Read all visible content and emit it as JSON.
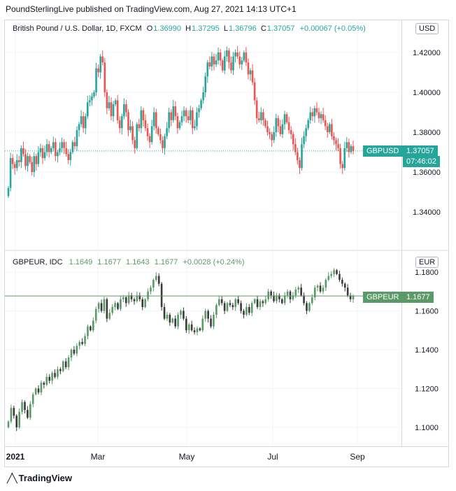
{
  "header": {
    "publisher": "PoundSterlingLive published on TradingView.com, Aug 27, 2021 14:13 UTC+1"
  },
  "footer": {
    "brand": "TradingView"
  },
  "colors": {
    "up": "#26a69a",
    "down": "#ef5350",
    "up2": "#5b9a68",
    "down2": "#3a3a3a",
    "usd_tag": "#26a69a",
    "eur_tag": "#5b9a68",
    "grid": "#f0f3fa",
    "text": "#131722"
  },
  "chart_data": [
    {
      "type": "candlestick",
      "title": "British Pound / U.S. Dollar, 1D, FXCM",
      "ohlc": {
        "o_label": "O",
        "o": "1.36990",
        "h_label": "H",
        "h": "1.37295",
        "l_label": "L",
        "l": "1.36796",
        "c_label": "C",
        "c": "1.37057",
        "change": "+0.00067 (+0.05%)"
      },
      "currency": "USD",
      "y_ticks": [
        "1.42000",
        "1.40000",
        "1.38000",
        "1.36000",
        "1.34000"
      ],
      "ylim": [
        1.328,
        1.435
      ],
      "last": {
        "symbol": "GBPUSD",
        "value": "1.37057",
        "countdown": "07:46:02",
        "price": 1.37057
      },
      "closes": [
        1.352,
        1.367,
        1.364,
        1.362,
        1.366,
        1.365,
        1.372,
        1.369,
        1.363,
        1.368,
        1.365,
        1.36,
        1.368,
        1.364,
        1.37,
        1.372,
        1.367,
        1.37,
        1.374,
        1.37,
        1.372,
        1.375,
        1.368,
        1.37,
        1.372,
        1.375,
        1.372,
        1.369,
        1.366,
        1.37,
        1.375,
        1.373,
        1.381,
        1.384,
        1.388,
        1.382,
        1.388,
        1.395,
        1.396,
        1.398,
        1.4,
        1.412,
        1.41,
        1.418,
        1.415,
        1.4,
        1.392,
        1.395,
        1.388,
        1.394,
        1.396,
        1.386,
        1.382,
        1.388,
        1.394,
        1.39,
        1.381,
        1.383,
        1.376,
        1.372,
        1.384,
        1.382,
        1.391,
        1.386,
        1.382,
        1.378,
        1.375,
        1.383,
        1.39,
        1.382,
        1.379,
        1.376,
        1.372,
        1.378,
        1.382,
        1.39,
        1.386,
        1.393,
        1.388,
        1.382,
        1.385,
        1.388,
        1.391,
        1.388,
        1.386,
        1.391,
        1.382,
        1.383,
        1.39,
        1.392,
        1.396,
        1.4,
        1.408,
        1.415,
        1.413,
        1.418,
        1.414,
        1.416,
        1.42,
        1.416,
        1.411,
        1.418,
        1.421,
        1.415,
        1.411,
        1.418,
        1.42,
        1.418,
        1.414,
        1.416,
        1.42,
        1.415,
        1.409,
        1.411,
        1.405,
        1.396,
        1.387,
        1.386,
        1.39,
        1.386,
        1.383,
        1.38,
        1.379,
        1.376,
        1.38,
        1.387,
        1.383,
        1.379,
        1.384,
        1.389,
        1.385,
        1.381,
        1.379,
        1.374,
        1.37,
        1.366,
        1.362,
        1.374,
        1.378,
        1.382,
        1.386,
        1.39,
        1.388,
        1.392,
        1.39,
        1.387,
        1.389,
        1.386,
        1.383,
        1.38,
        1.384,
        1.378,
        1.376,
        1.374,
        1.372,
        1.364,
        1.362,
        1.372,
        1.375,
        1.37,
        1.373,
        1.3706
      ]
    },
    {
      "type": "candlestick",
      "title": "GBPEUR, IDC",
      "ohlc": {
        "o": "1.1649",
        "h": "1.1677",
        "l": "1.1643",
        "c": "1.1677",
        "change": "+0.0028 (+0.24%)"
      },
      "currency": "EUR",
      "y_ticks": [
        "1.1800",
        "1.1600",
        "1.1400",
        "1.1200",
        "1.1000"
      ],
      "ylim": [
        1.0905,
        1.1845
      ],
      "last": {
        "symbol": "GBPEUR",
        "value": "1.1677",
        "price": 1.1677
      },
      "closes": [
        1.103,
        1.11,
        1.106,
        1.1,
        1.108,
        1.113,
        1.109,
        1.105,
        1.112,
        1.117,
        1.12,
        1.118,
        1.123,
        1.122,
        1.126,
        1.124,
        1.128,
        1.126,
        1.13,
        1.129,
        1.134,
        1.131,
        1.136,
        1.14,
        1.138,
        1.142,
        1.144,
        1.143,
        1.147,
        1.152,
        1.15,
        1.155,
        1.161,
        1.164,
        1.16,
        1.166,
        1.156,
        1.159,
        1.162,
        1.164,
        1.161,
        1.166,
        1.167,
        1.164,
        1.168,
        1.166,
        1.165,
        1.168,
        1.166,
        1.162,
        1.166,
        1.17,
        1.172,
        1.176,
        1.178,
        1.174,
        1.162,
        1.156,
        1.158,
        1.154,
        1.156,
        1.152,
        1.158,
        1.16,
        1.156,
        1.15,
        1.153,
        1.15,
        1.149,
        1.151,
        1.15,
        1.156,
        1.16,
        1.156,
        1.152,
        1.158,
        1.163,
        1.166,
        1.164,
        1.16,
        1.164,
        1.163,
        1.162,
        1.166,
        1.164,
        1.16,
        1.158,
        1.162,
        1.159,
        1.164,
        1.166,
        1.162,
        1.165,
        1.164,
        1.166,
        1.17,
        1.168,
        1.165,
        1.168,
        1.166,
        1.164,
        1.168,
        1.17,
        1.166,
        1.168,
        1.171,
        1.172,
        1.168,
        1.164,
        1.16,
        1.164,
        1.167,
        1.172,
        1.173,
        1.17,
        1.172,
        1.176,
        1.178,
        1.179,
        1.181,
        1.179,
        1.176,
        1.174,
        1.172,
        1.168,
        1.166,
        1.1677
      ]
    }
  ],
  "x_axis": {
    "ticks": [
      "2021",
      "Mar",
      "May",
      "Jul",
      "Sep"
    ]
  }
}
